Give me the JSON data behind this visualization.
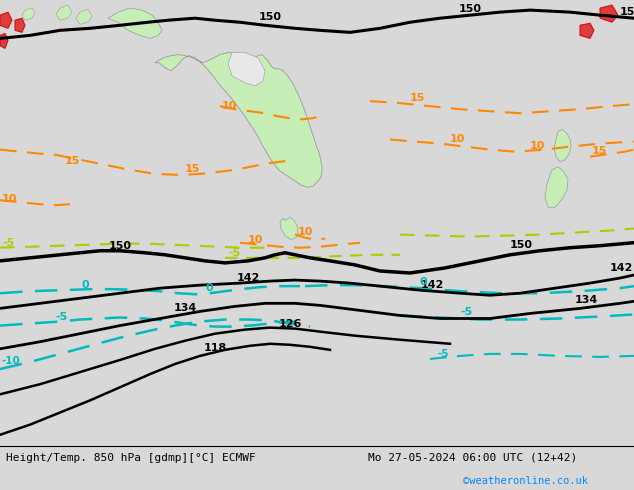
{
  "title_left": "Height/Temp. 850 hPa [gdmp][°C] ECMWF",
  "title_right": "Mo 27-05-2024 06:00 UTC (12+42)",
  "credit": "©weatheronline.co.uk",
  "bg_color": "#d8d8d8",
  "map_bg": "#f0f0f0",
  "land_color": "#c8eeb8",
  "sea_color": "#e8e8e8",
  "contour_black": "#000000",
  "contour_orange": "#ff8800",
  "contour_yellow_green": "#aacc00",
  "contour_cyan": "#00bbbb",
  "contour_red": "#cc0000",
  "label_fontsize": 8,
  "credit_color": "#0088ff",
  "figsize": [
    6.34,
    4.9
  ],
  "dpi": 100,
  "bottom_bar_height": 0.09
}
